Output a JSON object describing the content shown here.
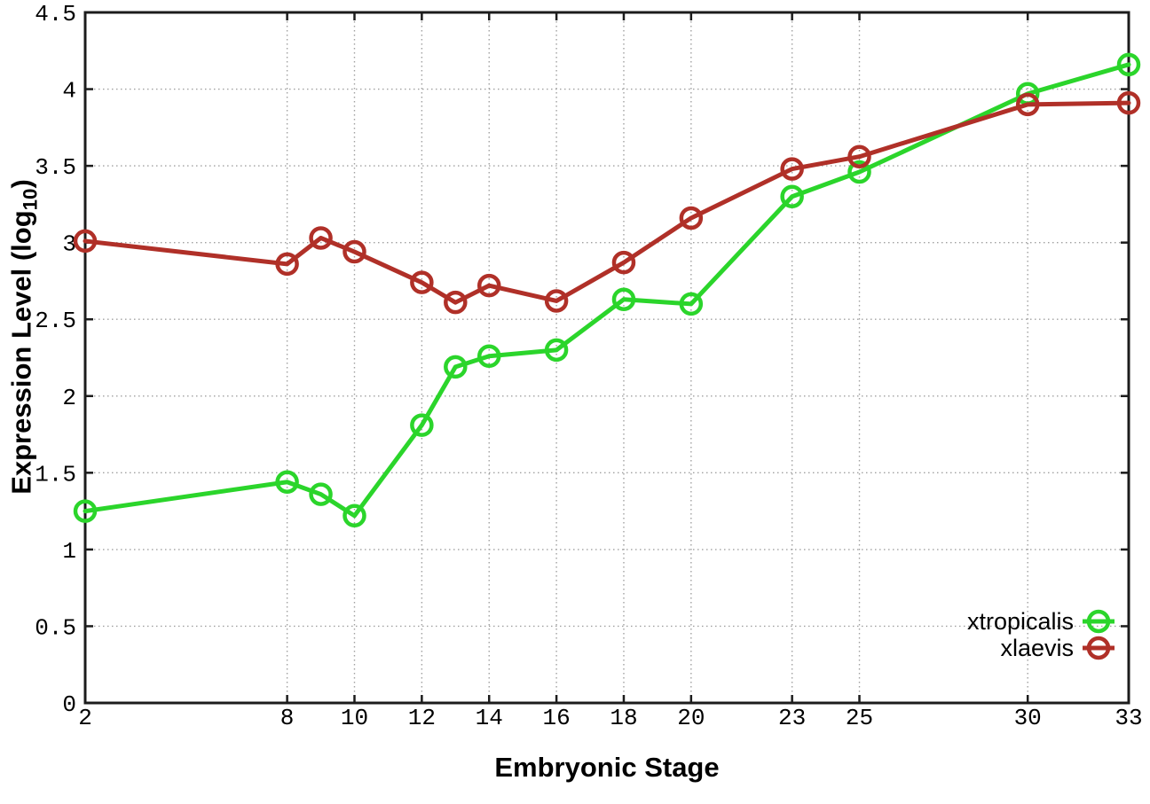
{
  "chart_data": {
    "type": "line",
    "xlabel": "Embryonic Stage",
    "ylabel": "Expression Level (log10)",
    "ylabel_parts": {
      "prefix": "Expression Level (log",
      "subscript": "10",
      "suffix": ")"
    },
    "xlim": [
      2,
      33
    ],
    "ylim": [
      0,
      4.5
    ],
    "x_ticks": [
      2,
      8,
      10,
      12,
      14,
      16,
      18,
      20,
      23,
      25,
      30,
      33
    ],
    "y_ticks": [
      0,
      0.5,
      1,
      1.5,
      2,
      2.5,
      3,
      3.5,
      4,
      4.5
    ],
    "grid": true,
    "legend_position": "inside bottom-right",
    "marker": "open-circle",
    "x": [
      2,
      8,
      9,
      10,
      12,
      13,
      14,
      16,
      18,
      20,
      23,
      25,
      30,
      33
    ],
    "series": [
      {
        "name": "xtropicalis",
        "color": "#2bd52b",
        "values": [
          1.25,
          1.44,
          1.36,
          1.22,
          1.81,
          2.19,
          2.26,
          2.3,
          2.63,
          2.6,
          3.3,
          3.46,
          3.97,
          4.16
        ]
      },
      {
        "name": "xlaevis",
        "color": "#b03028",
        "values": [
          3.01,
          2.86,
          3.03,
          2.94,
          2.74,
          2.61,
          2.72,
          2.62,
          2.87,
          3.16,
          3.48,
          3.56,
          3.9,
          3.91
        ]
      }
    ],
    "colors": {
      "background": "#ffffff",
      "grid": "#a0a0a0",
      "axis": "#1c1c1c",
      "text": "#000000"
    }
  }
}
